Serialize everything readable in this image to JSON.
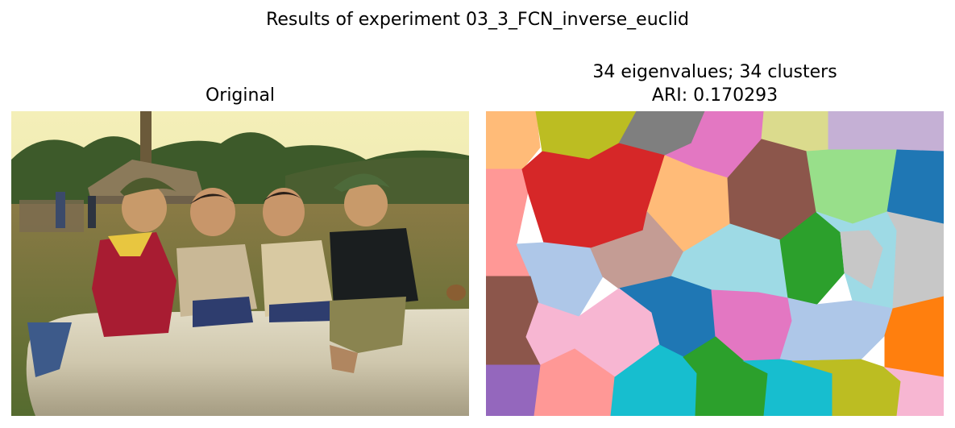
{
  "suptitle": "Results of experiment 03_3_FCN_inverse_euclid",
  "left_panel": {
    "title": "Original"
  },
  "right_panel": {
    "title_line1": "34 eigenvalues; 34 clusters",
    "title_line2": "ARI: 0.170293"
  },
  "chart_data": {
    "type": "image-segmentation",
    "title": "Results of experiment 03_3_FCN_inverse_euclid",
    "panels": [
      {
        "title": "Original",
        "content": "photo: four children sitting on a concrete pipe in a field, trees and huts behind"
      },
      {
        "title": "34 eigenvalues; 34 clusters\nARI: 0.170293",
        "eigenvalues": 34,
        "clusters": 34,
        "ARI": 0.170293
      }
    ],
    "cluster_colors": [
      "#ffbb78",
      "#bcbd22",
      "#7f7f7f",
      "#e377c2",
      "#dbdb8d",
      "#c5b0d5",
      "#ff9896",
      "#d62728",
      "#ffbb78",
      "#8c564b",
      "#98df8a",
      "#1f77b4",
      "#aec7e8",
      "#c49c94",
      "#9edae5",
      "#2ca02c",
      "#c7c7c7",
      "#8c564b",
      "#1f77b4",
      "#e377c2",
      "#aec7e8",
      "#ff7f0e",
      "#f7b6d2",
      "#9467bd",
      "#ff9896",
      "#17becf",
      "#2ca02c",
      "#17becf",
      "#bcbd22",
      "#f7b6d2"
    ]
  }
}
